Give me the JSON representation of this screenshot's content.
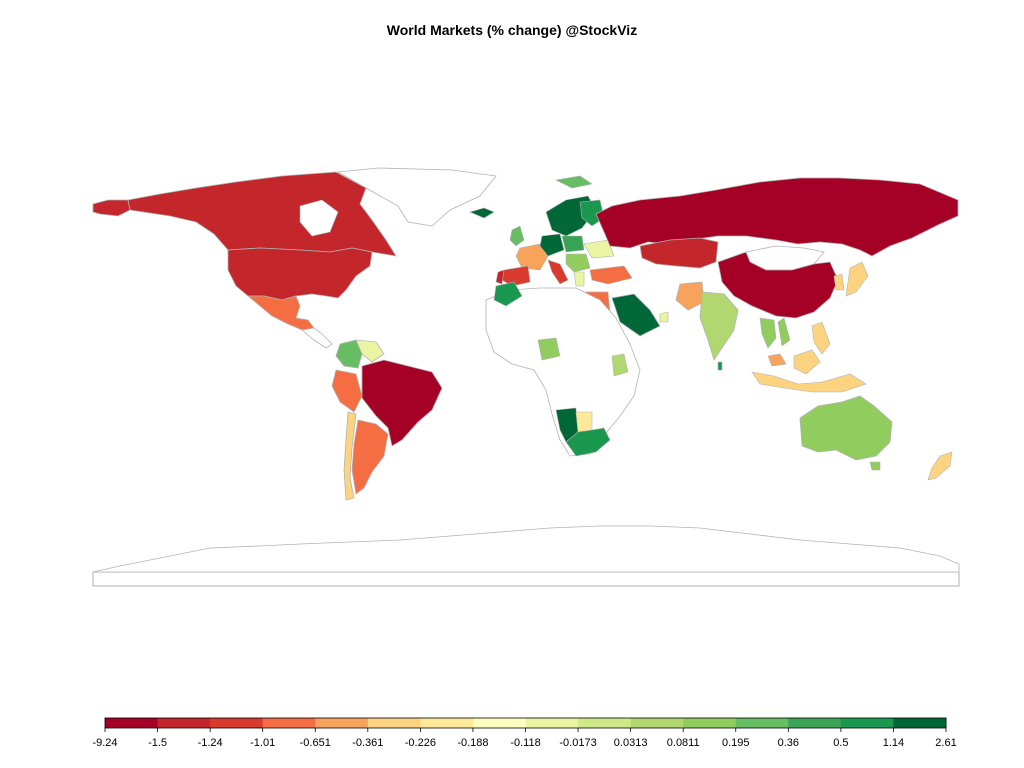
{
  "title": "World Markets (% change) @StockViz",
  "legend": {
    "breaks": [
      "-9.24",
      "-1.5",
      "-1.24",
      "-1.01",
      "-0.651",
      "-0.361",
      "-0.226",
      "-0.188",
      "-0.118",
      "-0.0173",
      "0.0313",
      "0.0811",
      "0.195",
      "0.36",
      "0.5",
      "1.14",
      "2.61"
    ],
    "colors": [
      "#a50026",
      "#c3272b",
      "#d93a2e",
      "#f46d43",
      "#f7a35c",
      "#fdd37f",
      "#fee99a",
      "#ffffbf",
      "#e9f5a3",
      "#cfe989",
      "#b1d870",
      "#91cc5e",
      "#66bd63",
      "#3aa356",
      "#1a9850",
      "#006837"
    ]
  },
  "map_colors": {
    "border": "#b3b3b3",
    "no_data": "#ffffff",
    "frame": "#b3b3b3"
  }
}
